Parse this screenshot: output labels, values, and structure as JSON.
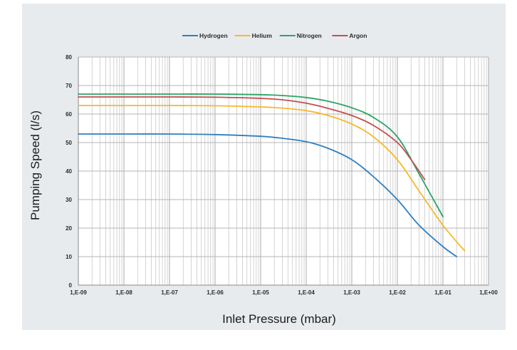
{
  "chart_data": {
    "type": "line",
    "title": "",
    "xlabel": "Inlet Pressure (mbar)",
    "ylabel": "Pumping Speed (l/s)",
    "x_scale": "log",
    "xlim": [
      1e-09,
      1
    ],
    "ylim": [
      0,
      80
    ],
    "grid": true,
    "legend_position": "top",
    "x_tick_labels": [
      "1,E-09",
      "1,E-08",
      "1,E-07",
      "1,E-06",
      "1,E-05",
      "1,E-04",
      "1,E-03",
      "1,E-02",
      "1,E-01",
      "1,E+00"
    ],
    "y_tick_labels": [
      "0",
      "10",
      "20",
      "30",
      "40",
      "50",
      "60",
      "70",
      "80"
    ],
    "series": [
      {
        "name": "Hydrogen",
        "color": "#2f7fc1",
        "points": [
          [
            1e-09,
            53
          ],
          [
            1e-08,
            53
          ],
          [
            1e-07,
            53
          ],
          [
            1e-06,
            52.8
          ],
          [
            1e-05,
            52.2
          ],
          [
            3e-05,
            51.5
          ],
          [
            0.0001,
            50.3
          ],
          [
            0.0003,
            48
          ],
          [
            0.001,
            44
          ],
          [
            0.003,
            38
          ],
          [
            0.01,
            30
          ],
          [
            0.03,
            21
          ],
          [
            0.1,
            13.5
          ],
          [
            0.2,
            10
          ]
        ]
      },
      {
        "name": "Helium",
        "color": "#f6b92b",
        "points": [
          [
            1e-09,
            63
          ],
          [
            1e-08,
            63
          ],
          [
            1e-07,
            63
          ],
          [
            1e-06,
            62.9
          ],
          [
            1e-05,
            62.5
          ],
          [
            3e-05,
            62.1
          ],
          [
            0.0001,
            61.2
          ],
          [
            0.0003,
            59.5
          ],
          [
            0.001,
            56.5
          ],
          [
            0.003,
            52
          ],
          [
            0.01,
            44
          ],
          [
            0.03,
            33
          ],
          [
            0.1,
            21
          ],
          [
            0.3,
            12
          ]
        ]
      },
      {
        "name": "Nitrogen",
        "color": "#2aa565",
        "points": [
          [
            1e-09,
            67
          ],
          [
            1e-08,
            67
          ],
          [
            1e-07,
            67
          ],
          [
            1e-06,
            67
          ],
          [
            1e-05,
            66.8
          ],
          [
            3e-05,
            66.5
          ],
          [
            0.0001,
            65.8
          ],
          [
            0.0003,
            64.5
          ],
          [
            0.001,
            62.2
          ],
          [
            0.003,
            58.8
          ],
          [
            0.01,
            52
          ],
          [
            0.03,
            39
          ],
          [
            0.1,
            24
          ]
        ]
      },
      {
        "name": "Argon",
        "color": "#c0504d",
        "points": [
          [
            1e-09,
            66
          ],
          [
            1e-08,
            66
          ],
          [
            1e-07,
            66
          ],
          [
            1e-06,
            65.9
          ],
          [
            1e-05,
            65.5
          ],
          [
            3e-05,
            65
          ],
          [
            0.0001,
            63.8
          ],
          [
            0.0003,
            62
          ],
          [
            0.001,
            59.5
          ],
          [
            0.003,
            56
          ],
          [
            0.01,
            50
          ],
          [
            0.02,
            44
          ],
          [
            0.04,
            37
          ]
        ]
      }
    ]
  }
}
